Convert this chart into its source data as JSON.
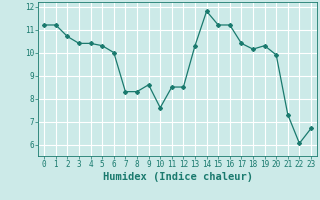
{
  "x": [
    0,
    1,
    2,
    3,
    4,
    5,
    6,
    7,
    8,
    9,
    10,
    11,
    12,
    13,
    14,
    15,
    16,
    17,
    18,
    19,
    20,
    21,
    22,
    23
  ],
  "y": [
    11.2,
    11.2,
    10.7,
    10.4,
    10.4,
    10.3,
    10.0,
    8.3,
    8.3,
    8.6,
    7.6,
    8.5,
    8.5,
    10.3,
    11.8,
    11.2,
    11.2,
    10.4,
    10.15,
    10.3,
    9.9,
    7.3,
    6.05,
    6.7
  ],
  "line_color": "#1a7a6e",
  "marker": "D",
  "marker_size": 2.0,
  "bg_color": "#cceae8",
  "grid_color": "#ffffff",
  "xlabel": "Humidex (Indice chaleur)",
  "ylim": [
    5.5,
    12.2
  ],
  "xlim": [
    -0.5,
    23.5
  ],
  "yticks": [
    6,
    7,
    8,
    9,
    10,
    11,
    12
  ],
  "xticks": [
    0,
    1,
    2,
    3,
    4,
    5,
    6,
    7,
    8,
    9,
    10,
    11,
    12,
    13,
    14,
    15,
    16,
    17,
    18,
    19,
    20,
    21,
    22,
    23
  ],
  "tick_color": "#1a7a6e",
  "label_color": "#1a7a6e",
  "label_fontsize": 7.5,
  "tick_fontsize": 5.5
}
